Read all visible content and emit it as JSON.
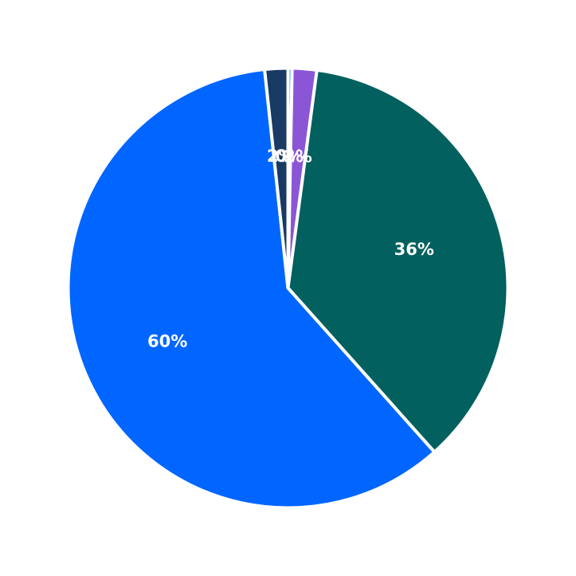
{
  "chart_data": {
    "type": "pie",
    "title": "",
    "start_angle_deg": 90,
    "direction": "clockwise",
    "slices": [
      {
        "label": "0%",
        "value": 0.3,
        "color": "#3AA0F0"
      },
      {
        "label": "2%",
        "value": 1.8,
        "color": "#8A56D6"
      },
      {
        "label": "36%",
        "value": 36.3,
        "color": "#02605E"
      },
      {
        "label": "60%",
        "value": 59.9,
        "color": "#0066FF"
      },
      {
        "label": "2%",
        "value": 1.7,
        "color": "#183A64"
      }
    ]
  }
}
